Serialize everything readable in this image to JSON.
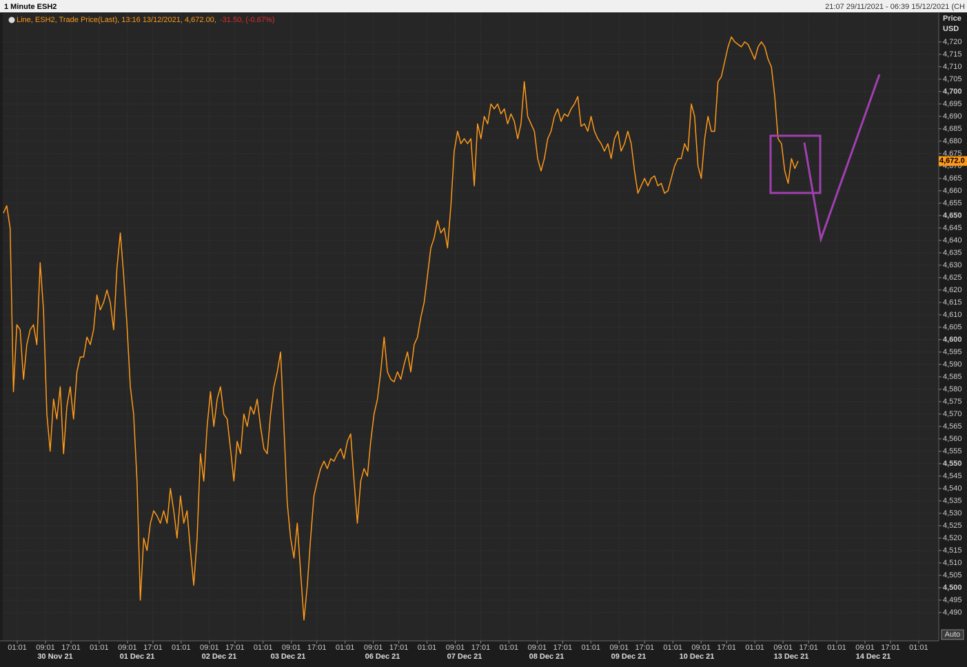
{
  "header": {
    "title": "1 Minute ESH2",
    "range": "21:07 29/11/2021 - 06:39 15/12/2021 (CH"
  },
  "chart_data": {
    "type": "line",
    "legend_text": "Line, ESH2, Trade Price(Last), 13:16 13/12/2021, 4,672.00,",
    "legend_change": "-31.50, (-0.67%)",
    "y_label": [
      "Price",
      "USD"
    ],
    "auto_button": "Auto",
    "series": [
      {
        "name": "ESH2",
        "color": "#ff9a1a",
        "values": [
          4651,
          4654,
          4645,
          4579,
          4606,
          4604,
          4584,
          4598,
          4604,
          4606,
          4598,
          4631,
          4612,
          4570,
          4555,
          4576,
          4568,
          4581,
          4554,
          4573,
          4581,
          4568,
          4587,
          4593,
          4593,
          4601,
          4598,
          4604,
          4618,
          4612,
          4615,
          4620,
          4615,
          4604,
          4629,
          4643,
          4626,
          4606,
          4581,
          4570,
          4543,
          4495,
          4520,
          4515,
          4526,
          4531,
          4529,
          4526,
          4531,
          4526,
          4540,
          4531,
          4520,
          4537,
          4526,
          4531,
          4515,
          4501,
          4520,
          4554,
          4543,
          4565,
          4579,
          4565,
          4576,
          4581,
          4570,
          4568,
          4556,
          4543,
          4559,
          4554,
          4570,
          4565,
          4573,
          4570,
          4576,
          4565,
          4556,
          4554,
          4570,
          4581,
          4587,
          4595,
          4565,
          4534,
          4520,
          4512,
          4526,
          4506,
          4487,
          4501,
          4520,
          4537,
          4543,
          4548,
          4551,
          4548,
          4552,
          4551,
          4554,
          4556,
          4552,
          4559,
          4562,
          4543,
          4526,
          4543,
          4548,
          4545,
          4559,
          4570,
          4576,
          4587,
          4601,
          4587,
          4584,
          4583,
          4587,
          4584,
          4590,
          4595,
          4587,
          4598,
          4601,
          4609,
          4615,
          4626,
          4637,
          4641,
          4648,
          4643,
          4645,
          4637,
          4654,
          4676,
          4684,
          4679,
          4681,
          4679,
          4681,
          4662,
          4687,
          4681,
          4690,
          4687,
          4695,
          4693,
          4695,
          4691,
          4693,
          4687,
          4691,
          4688,
          4681,
          4687,
          4704,
          4690,
          4687,
          4684,
          4673,
          4668,
          4673,
          4681,
          4684,
          4690,
          4693,
          4688,
          4691,
          4690,
          4693,
          4695,
          4698,
          4686,
          4687,
          4684,
          4690,
          4684,
          4681,
          4679,
          4676,
          4679,
          4673,
          4681,
          4684,
          4676,
          4679,
          4684,
          4679,
          4668,
          4659,
          4662,
          4665,
          4662,
          4665,
          4666,
          4662,
          4663,
          4659,
          4660,
          4665,
          4670,
          4673,
          4673,
          4679,
          4676,
          4695,
          4690,
          4670,
          4665,
          4681,
          4690,
          4684,
          4684,
          4704,
          4706,
          4712,
          4718,
          4722,
          4720,
          4719,
          4718,
          4720,
          4719,
          4716,
          4713,
          4718,
          4720,
          4718,
          4713,
          4710,
          4698,
          4681,
          4679,
          4668,
          4663,
          4673,
          4669,
          4672
        ]
      }
    ],
    "last_value": 4672,
    "last_label": "4,672.0",
    "ylim": [
      4478.6,
      4731.9
    ],
    "yticks": [
      {
        "value": 4490,
        "label": "4,490"
      },
      {
        "value": 4495,
        "label": "4,495"
      },
      {
        "value": 4500,
        "label": "4,500"
      },
      {
        "value": 4505,
        "label": "4,505"
      },
      {
        "value": 4510,
        "label": "4,510"
      },
      {
        "value": 4515,
        "label": "4,515"
      },
      {
        "value": 4520,
        "label": "4,520"
      },
      {
        "value": 4525,
        "label": "4,525"
      },
      {
        "value": 4530,
        "label": "4,530"
      },
      {
        "value": 4535,
        "label": "4,535"
      },
      {
        "value": 4540,
        "label": "4,540"
      },
      {
        "value": 4545,
        "label": "4,545"
      },
      {
        "value": 4550,
        "label": "4,550"
      },
      {
        "value": 4555,
        "label": "4,555"
      },
      {
        "value": 4560,
        "label": "4,560"
      },
      {
        "value": 4565,
        "label": "4,565"
      },
      {
        "value": 4570,
        "label": "4,570"
      },
      {
        "value": 4575,
        "label": "4,575"
      },
      {
        "value": 4580,
        "label": "4,580"
      },
      {
        "value": 4585,
        "label": "4,585"
      },
      {
        "value": 4590,
        "label": "4,590"
      },
      {
        "value": 4595,
        "label": "4,595"
      },
      {
        "value": 4600,
        "label": "4,600"
      },
      {
        "value": 4605,
        "label": "4,605"
      },
      {
        "value": 4610,
        "label": "4,610"
      },
      {
        "value": 4615,
        "label": "4,615"
      },
      {
        "value": 4620,
        "label": "4,620"
      },
      {
        "value": 4625,
        "label": "4,625"
      },
      {
        "value": 4630,
        "label": "4,630"
      },
      {
        "value": 4635,
        "label": "4,635"
      },
      {
        "value": 4640,
        "label": "4,640"
      },
      {
        "value": 4645,
        "label": "4,645"
      },
      {
        "value": 4650,
        "label": "4,650"
      },
      {
        "value": 4655,
        "label": "4,655"
      },
      {
        "value": 4660,
        "label": "4,660"
      },
      {
        "value": 4665,
        "label": "4,665"
      },
      {
        "value": 4670,
        "label": "4,670"
      },
      {
        "value": 4675,
        "label": "4,675"
      },
      {
        "value": 4680,
        "label": "4,680"
      },
      {
        "value": 4685,
        "label": "4,685"
      },
      {
        "value": 4690,
        "label": "4,690"
      },
      {
        "value": 4695,
        "label": "4,695"
      },
      {
        "value": 4700,
        "label": "4,700"
      },
      {
        "value": 4705,
        "label": "4,705"
      },
      {
        "value": 4710,
        "label": "4,710"
      },
      {
        "value": 4715,
        "label": "4,715"
      },
      {
        "value": 4720,
        "label": "4,720"
      }
    ],
    "xtick_labels": [
      "01:01",
      "09:01",
      "17:01",
      "01:01",
      "09:01",
      "17:01",
      "01:01",
      "09:01",
      "17:01",
      "01:01",
      "09:01",
      "17:01",
      "01:01",
      "09:01",
      "17:01",
      "01:01",
      "09:01",
      "17:01",
      "01:01",
      "09:01",
      "17:01",
      "01:01",
      "09:01",
      "17:01",
      "01:01",
      "09:01",
      "17:01",
      "01:01",
      "09:01",
      "17:01",
      "01:01",
      "09:01",
      "17:01",
      "01:01"
    ],
    "date_labels": [
      "30 Nov 21",
      "01 Dec 21",
      "02 Dec 21",
      "03 Dec 21",
      "06 Dec 21",
      "07 Dec 21",
      "08 Dec 21",
      "09 Dec 21",
      "10 Dec 21",
      "13 Dec 21",
      "14 Dec 21"
    ],
    "grid": true
  }
}
